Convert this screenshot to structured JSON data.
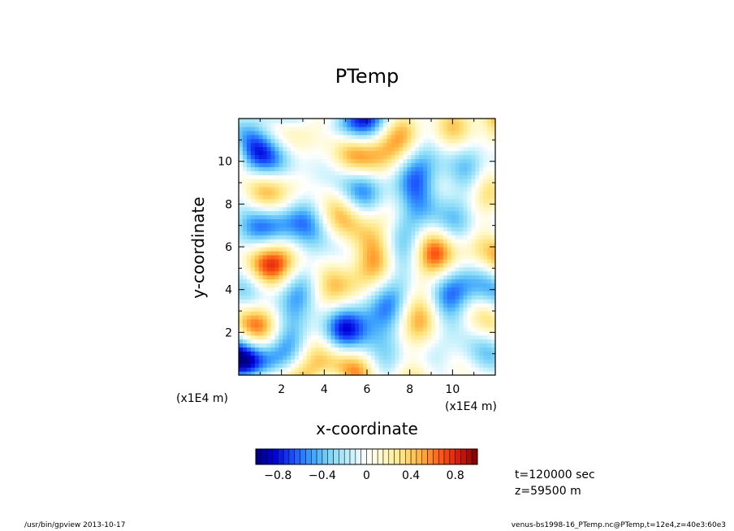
{
  "footer": {
    "left": "/usr/bin/gpview   2013-10-17",
    "right": "venus-bs1998-16_PTemp.nc@PTemp,t=12e4,z=40e3:60e3"
  },
  "info": {
    "time": "t=120000 sec",
    "height": "z=59500  m"
  },
  "chart_data": {
    "type": "heatmap",
    "title": "PTemp",
    "xlabel": "x-coordinate",
    "ylabel": "y-coordinate",
    "xunit": "(x1E4 m)",
    "yunit": "(x1E4 m)",
    "xlim": [
      0,
      12
    ],
    "ylim": [
      0,
      12
    ],
    "xticks": [
      2,
      4,
      6,
      8,
      10
    ],
    "yticks": [
      2,
      4,
      6,
      8,
      10
    ],
    "value_range": [
      -1.0,
      1.0
    ],
    "colorbar": {
      "ticks": [
        -0.8,
        -0.4,
        0,
        0.4,
        0.8
      ],
      "tick_labels": [
        "−0.8",
        "−0.4",
        "0",
        "0.4",
        "0.8"
      ],
      "levels": 40,
      "colors": [
        "#00007f",
        "#0000d6",
        "#1a4fff",
        "#3aa0ff",
        "#7ed6f6",
        "#bdeefb",
        "#ffffff",
        "#fff7c2",
        "#ffe27a",
        "#ffae3a",
        "#ff5a14",
        "#d61a0a",
        "#7f0000"
      ]
    },
    "field_description": "random perturbation field, mostly within -0.5..0.5, cyan/blue and yellow patches",
    "cell_values_note": "values approximately in [-0.7, 0.5]"
  }
}
